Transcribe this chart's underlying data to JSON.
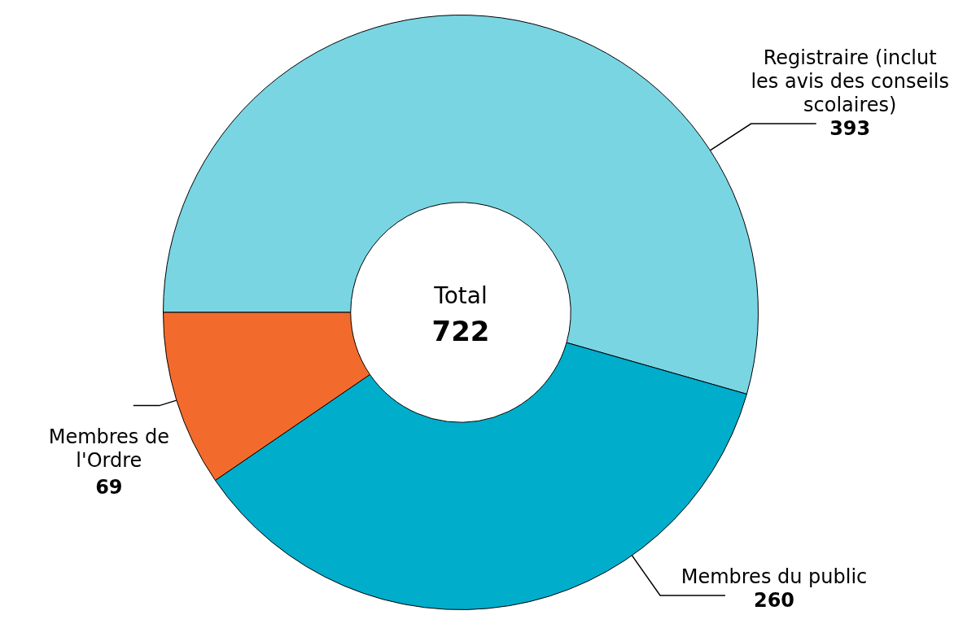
{
  "chart_data": {
    "type": "donut",
    "categories": [
      "Registraire (inclut les avis des conseils scolaires)",
      "Membres du public",
      "Membres de l'Ordre"
    ],
    "values": [
      393,
      260,
      69
    ],
    "colors": [
      "#7ad5e3",
      "#00adcb",
      "#f26b2d"
    ],
    "data_labels": true,
    "legend": false,
    "annotations": [
      "Total",
      "722"
    ]
  }
}
